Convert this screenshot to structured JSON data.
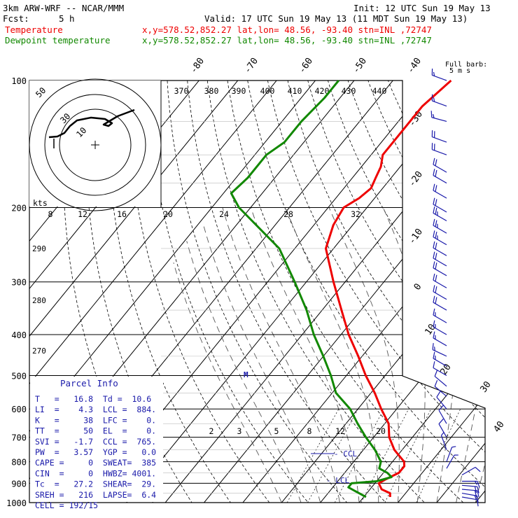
{
  "header": {
    "model": "3km ARW-WRF -- NCAR/MMM",
    "init": "Init: 12 UTC Sun 19 May 13",
    "fcst_label": "Fcst:",
    "fcst_value": "5 h",
    "valid": "Valid: 17 UTC Sun 19 May 13 (11 MDT Sun 19 May 13)"
  },
  "legend": {
    "temperature": {
      "label": "Temperature",
      "info": "x,y=578.52,852.27   lat,lon= 48.56, -93.40  stn=INL ,72747",
      "color": "#ee0000"
    },
    "dewpoint": {
      "label": "Dewpoint temperature",
      "info": "x,y=578.52,852.27   lat,lon= 48.56, -93.40  stn=INL ,72747",
      "color": "#118800"
    },
    "barb_label": "Full barb:",
    "barb_units": "5 m s",
    "barb_color": "#1a1aaa"
  },
  "chart_data": {
    "type": "skew-t",
    "title": "",
    "xlabel": "",
    "ylabel": "",
    "pressure_levels": [
      100,
      200,
      300,
      400,
      500,
      600,
      700,
      800,
      900,
      1000
    ],
    "pressure_labels": [
      "100",
      "200",
      "300",
      "400",
      "500",
      "600",
      "700",
      "800",
      "900",
      "1000"
    ],
    "isotherm_labels": [
      {
        "t": -80,
        "text": "-80"
      },
      {
        "t": -70,
        "text": "-70"
      },
      {
        "t": -60,
        "text": "-60"
      },
      {
        "t": -50,
        "text": "-50"
      },
      {
        "t": -40,
        "text": "-40"
      },
      {
        "t": -30,
        "text": "-30"
      },
      {
        "t": -20,
        "text": "-20"
      },
      {
        "t": -10,
        "text": "-10"
      },
      {
        "t": 0,
        "text": "0"
      },
      {
        "t": 10,
        "text": "10"
      },
      {
        "t": 20,
        "text": "20"
      },
      {
        "t": 30,
        "text": "30"
      },
      {
        "t": 40,
        "text": "40"
      }
    ],
    "theta_labels": [
      "370",
      "380",
      "390",
      "400",
      "410",
      "420",
      "430",
      "440"
    ],
    "hodograph": {
      "ring_labels": [
        "50",
        "30",
        "10"
      ],
      "kts_label": "kts",
      "speed_labels": [
        "8",
        "12",
        "16",
        "20",
        "24",
        "28",
        "32"
      ]
    },
    "side_labels": {
      "s290": "290",
      "s280": "280",
      "s270": "270"
    },
    "mixing_ratio_labels": [
      "2",
      "3",
      "5",
      "8",
      "12",
      "20"
    ],
    "markers": {
      "m": "M",
      "ccl": "CCL",
      "lcl": "LCL"
    },
    "series": [
      {
        "name": "Temperature",
        "color": "#ee0000",
        "points": [
          [
            100,
            -55
          ],
          [
            115,
            -57
          ],
          [
            140,
            -57
          ],
          [
            150,
            -57
          ],
          [
            160,
            -55
          ],
          [
            170,
            -54
          ],
          [
            180,
            -53
          ],
          [
            190,
            -54
          ],
          [
            200,
            -56
          ],
          [
            220,
            -55
          ],
          [
            250,
            -52
          ],
          [
            300,
            -43
          ],
          [
            350,
            -35
          ],
          [
            400,
            -28
          ],
          [
            450,
            -21
          ],
          [
            500,
            -15
          ],
          [
            550,
            -9
          ],
          [
            600,
            -4
          ],
          [
            650,
            1
          ],
          [
            700,
            4
          ],
          [
            750,
            8
          ],
          [
            800,
            13
          ],
          [
            820,
            14
          ],
          [
            850,
            14
          ],
          [
            880,
            12
          ],
          [
            900,
            11
          ],
          [
            930,
            13
          ],
          [
            950,
            16
          ],
          [
            970,
            16.8
          ]
        ]
      },
      {
        "name": "Dewpoint temperature",
        "color": "#118800",
        "points": [
          [
            100,
            -84
          ],
          [
            110,
            -84
          ],
          [
            125,
            -85
          ],
          [
            140,
            -85
          ],
          [
            150,
            -87
          ],
          [
            170,
            -87
          ],
          [
            185,
            -88
          ],
          [
            200,
            -83
          ],
          [
            250,
            -64
          ],
          [
            300,
            -53
          ],
          [
            350,
            -44
          ],
          [
            400,
            -37
          ],
          [
            450,
            -30
          ],
          [
            500,
            -24
          ],
          [
            550,
            -19
          ],
          [
            600,
            -12
          ],
          [
            650,
            -7
          ],
          [
            700,
            -2
          ],
          [
            750,
            3
          ],
          [
            800,
            7
          ],
          [
            830,
            8
          ],
          [
            850,
            11
          ],
          [
            870,
            13
          ],
          [
            890,
            10
          ],
          [
            900,
            4
          ],
          [
            920,
            4
          ],
          [
            950,
            8
          ],
          [
            970,
            10.6
          ]
        ]
      }
    ],
    "winds": [
      {
        "p": 100,
        "dir": 290,
        "spd": 8
      },
      {
        "p": 115,
        "dir": 290,
        "spd": 8
      },
      {
        "p": 125,
        "dir": 285,
        "spd": 8
      },
      {
        "p": 140,
        "dir": 290,
        "spd": 10
      },
      {
        "p": 150,
        "dir": 290,
        "spd": 10
      },
      {
        "p": 165,
        "dir": 300,
        "spd": 10
      },
      {
        "p": 175,
        "dir": 300,
        "spd": 10
      },
      {
        "p": 190,
        "dir": 300,
        "spd": 9
      },
      {
        "p": 205,
        "dir": 300,
        "spd": 11
      },
      {
        "p": 215,
        "dir": 300,
        "spd": 12
      },
      {
        "p": 230,
        "dir": 300,
        "spd": 12
      },
      {
        "p": 245,
        "dir": 300,
        "spd": 12
      },
      {
        "p": 260,
        "dir": 300,
        "spd": 11
      },
      {
        "p": 275,
        "dir": 300,
        "spd": 11
      },
      {
        "p": 290,
        "dir": 300,
        "spd": 10
      },
      {
        "p": 310,
        "dir": 300,
        "spd": 10
      },
      {
        "p": 330,
        "dir": 300,
        "spd": 9
      },
      {
        "p": 350,
        "dir": 300,
        "spd": 9
      },
      {
        "p": 375,
        "dir": 300,
        "spd": 8
      },
      {
        "p": 400,
        "dir": 300,
        "spd": 8
      },
      {
        "p": 425,
        "dir": 300,
        "spd": 8
      },
      {
        "p": 450,
        "dir": 295,
        "spd": 7
      },
      {
        "p": 475,
        "dir": 300,
        "spd": 7
      },
      {
        "p": 500,
        "dir": 300,
        "spd": 6
      },
      {
        "p": 530,
        "dir": 310,
        "spd": 6
      },
      {
        "p": 560,
        "dir": 310,
        "spd": 5
      },
      {
        "p": 600,
        "dir": 320,
        "spd": 5
      },
      {
        "p": 650,
        "dir": 330,
        "spd": 4
      },
      {
        "p": 700,
        "dir": 330,
        "spd": 4
      },
      {
        "p": 750,
        "dir": 340,
        "spd": 3
      },
      {
        "p": 800,
        "dir": 20,
        "spd": 3
      },
      {
        "p": 830,
        "dir": 30,
        "spd": 3
      },
      {
        "p": 860,
        "dir": 60,
        "spd": 5
      },
      {
        "p": 890,
        "dir": 90,
        "spd": 8
      },
      {
        "p": 910,
        "dir": 95,
        "spd": 9
      },
      {
        "p": 930,
        "dir": 95,
        "spd": 9
      },
      {
        "p": 950,
        "dir": 100,
        "spd": 8
      },
      {
        "p": 970,
        "dir": 100,
        "spd": 6
      }
    ]
  },
  "parcel_info": {
    "title": "Parcel Info",
    "lines": [
      "T   =   16.8  Td =  10.6",
      "LI  =    4.3  LCL =  884.",
      "K   =     38  LFC =    0.",
      "TT  =     50  EL  =    0.",
      "SVI =   -1.7  CCL =  765.",
      "PW  =   3.57  YGP =   0.0",
      "CAPE =     0  SWEAT=  385",
      "CIN  =     0  HWBZ= 4001.",
      "Tc  =   27.2  SHEAR=  29.",
      "SREH =   216  LAPSE=  6.4",
      "CELL = 192/15"
    ],
    "color": "#1a1aaa"
  }
}
